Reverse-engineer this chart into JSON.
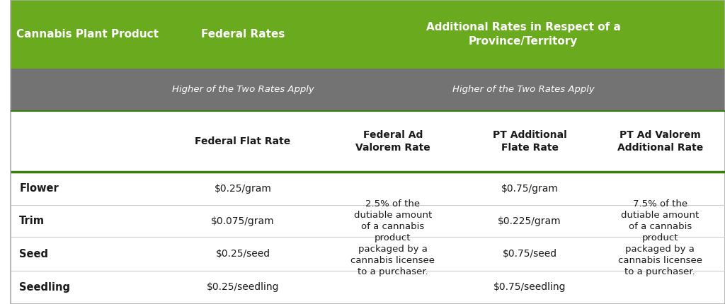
{
  "title_row": {
    "col1": "Cannabis Plant Product",
    "col2": "Federal Rates",
    "col3": "Additional Rates in Respect of a\nProvince/Territory"
  },
  "subtitle_row": {
    "col2": "Higher of the Two Rates Apply",
    "col3": "Higher of the Two Rates Apply"
  },
  "header_row": {
    "col2a": "Federal Flat Rate",
    "col2b": "Federal Ad\nValorem Rate",
    "col3a": "PT Additional\nFlate Rate",
    "col3b": "PT Ad Valorem\nAdditional Rate"
  },
  "products": [
    "Flower",
    "Trim",
    "Seed",
    "Seedling"
  ],
  "flat_rates": [
    "$0.25/gram",
    "$0.075/gram",
    "$0.25/seed",
    "$0.25/seedling"
  ],
  "pt_flats": [
    "$0.75/gram",
    "$0.225/gram",
    "$0.75/seed",
    "$0.75/seedling"
  ],
  "ad_valorem_text": "2.5% of the\ndutiable amount\nof a cannabis\nproduct\npackaged by a\ncannabis licensee\nto a purchaser.",
  "pt_ad_valorem_text": "7.5% of the\ndutiable amount\nof a cannabis\nproduct\npackaged by a\ncannabis licensee\nto a purchaser.",
  "colors": {
    "green_header": "#6aaa1e",
    "gray_row": "#737373",
    "white": "#ffffff",
    "black": "#1a1a1a",
    "dark_green_line": "#3a7d0a",
    "light_gray_line": "#cccccc"
  },
  "col_bounds": [
    0.0,
    0.215,
    0.435,
    0.635,
    0.818,
    1.0
  ],
  "row_bounds": [
    1.0,
    0.775,
    0.635,
    0.435,
    0.325,
    0.22,
    0.11,
    0.0
  ]
}
